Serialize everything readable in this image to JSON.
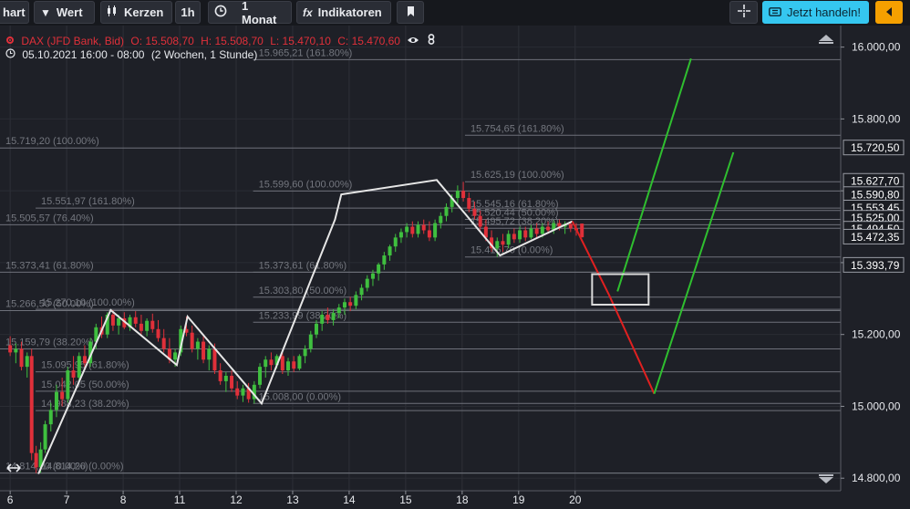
{
  "toolbar": {
    "chart_label": "hart",
    "value_label": "Wert",
    "candles_label": "Kerzen",
    "interval_label": "1h",
    "range_label": "1 Monat",
    "indicators_label": "Indikatoren",
    "trade_label": "Jetzt handeln!",
    "icons": [
      "dropdown-caret-icon",
      "candles-icon",
      "clock-icon",
      "fx-icon",
      "bookmark-icon",
      "crosshair-icon",
      "ticket-icon",
      "caret-left-icon"
    ]
  },
  "instrument": {
    "name": "DAX (JFD Bank, Bid)",
    "open": "O: 15.508,70",
    "high": "H: 15.508,70",
    "low": "L: 15.470,10",
    "close": "C: 15.470,60",
    "period": "05.10.2021 16:00 - 08:00",
    "span": "(2 Wochen, 1 Stunde)"
  },
  "colors": {
    "background": "#1e2027",
    "toolbar": "#16181d",
    "bullish": "#3fbf3f",
    "bearish": "#e0303a",
    "accent_blue": "#35c7f0",
    "accent_orange": "#f5a000",
    "projection_green": "#2fbf2f",
    "projection_red": "#e02020"
  },
  "chart_data": {
    "type": "candlestick",
    "title": "",
    "x_ticks": [
      {
        "label": "6",
        "x": 0
      },
      {
        "label": "7",
        "x": 1
      },
      {
        "label": "8",
        "x": 2
      },
      {
        "label": "11",
        "x": 3
      },
      {
        "label": "12",
        "x": 4
      },
      {
        "label": "13",
        "x": 5
      },
      {
        "label": "14",
        "x": 6
      },
      {
        "label": "15",
        "x": 7
      },
      {
        "label": "18",
        "x": 8
      },
      {
        "label": "19",
        "x": 9
      },
      {
        "label": "20",
        "x": 10
      }
    ],
    "y_ticks": [
      {
        "label": "16.000,00",
        "value": 16000
      },
      {
        "label": "15.800,00",
        "value": 15800
      },
      {
        "label": "15.600,00",
        "value": 15600
      },
      {
        "label": "15.400,00",
        "value": 15400
      },
      {
        "label": "15.200,00",
        "value": 15200
      },
      {
        "label": "15.000,00",
        "value": 15000
      },
      {
        "label": "14.800,00",
        "value": 14800
      }
    ],
    "ylim": [
      14765,
      16060
    ],
    "xlim": [
      -0.18,
      14.7
    ],
    "price_tags": [
      {
        "label": "15.720,50",
        "value": 15720.5
      },
      {
        "label": "15.627,70",
        "value": 15627.7
      },
      {
        "label": "15.590,80",
        "value": 15590.8
      },
      {
        "label": "15.553,45",
        "value": 15553.45
      },
      {
        "label": "15.525,00",
        "value": 15525
      },
      {
        "label": "15.494,50",
        "value": 15494.5
      },
      {
        "label": "15.472,35",
        "value": 15472.35
      },
      {
        "label": "15.393,79",
        "value": 15393.79
      }
    ],
    "fib_levels": [
      {
        "label": "15.965,21 (161.80%)",
        "value": 15965.21,
        "x0": 4.3,
        "x1": 14.7
      },
      {
        "label": "15.754,65 (161.80%)",
        "value": 15754.65,
        "x0": 8.05,
        "x1": 14.7
      },
      {
        "label": "15.719,20 (100.00%)",
        "value": 15719.2,
        "x0": -0.18,
        "x1": 14.7
      },
      {
        "label": "15.625,19 (100.00%)",
        "value": 15625.19,
        "x0": 8.05,
        "x1": 14.7
      },
      {
        "label": "15.599,60 (100.00%)",
        "value": 15599.6,
        "x0": 4.3,
        "x1": 14.7
      },
      {
        "label": "15.551,97 (161.80%)",
        "value": 15551.97,
        "x0": 0.45,
        "x1": 14.7
      },
      {
        "label": "15.545,16 (61.80%)",
        "value": 15545.16,
        "x0": 8.05,
        "x1": 14.7
      },
      {
        "label": "15.520,44 (50.00%)",
        "value": 15520.44,
        "x0": 8.05,
        "x1": 14.7
      },
      {
        "label": "15.505,57 (76.40%)",
        "value": 15505.57,
        "x0": -0.18,
        "x1": 14.7
      },
      {
        "label": "15.495,72 (38.20%)",
        "value": 15495.72,
        "x0": 8.05,
        "x1": 14.7
      },
      {
        "label": "15.415,70 (0.00%)",
        "value": 15415.7,
        "x0": 8.05,
        "x1": 14.7
      },
      {
        "label": "15.373,41 (61.80%)",
        "value": 15373.41,
        "x0": -0.18,
        "x1": 14.7
      },
      {
        "label": "15.373,61 (61.80%)",
        "value": 15373.61,
        "x0": 4.3,
        "x1": 14.7
      },
      {
        "label": "15.303,80 (50.00%)",
        "value": 15303.8,
        "x0": 4.3,
        "x1": 14.7
      },
      {
        "label": "15.270,10 (100.00%)",
        "value": 15270.1,
        "x0": 0.45,
        "x1": 14.7
      },
      {
        "label": "15.266,50 (50.00%)",
        "value": 15266.5,
        "x0": -0.18,
        "x1": 14.7
      },
      {
        "label": "15.233,99 (38.20%)",
        "value": 15233.99,
        "x0": 4.3,
        "x1": 14.7
      },
      {
        "label": "15.159,79 (38.20%)",
        "value": 15159.79,
        "x0": -0.18,
        "x1": 14.7
      },
      {
        "label": "15.095,95 (61.80%)",
        "value": 15095.95,
        "x0": 0.45,
        "x1": 14.7
      },
      {
        "label": "15.042,05 (50.00%)",
        "value": 15042.05,
        "x0": 0.45,
        "x1": 14.7
      },
      {
        "label": "15.008,00 (0.00%)",
        "value": 15008,
        "x0": 4.3,
        "x1": 14.7
      },
      {
        "label": "14.988,23 (38.20%)",
        "value": 14988.23,
        "x0": 0.45,
        "x1": 14.7
      },
      {
        "label": "14.814,20 (0.00%)",
        "value": 14814.2,
        "x0": -0.18,
        "x1": 14.7
      },
      {
        "label": "14.814,20 (0.00%)",
        "value": 14814.2,
        "x0": 0.45,
        "x1": 14.7
      }
    ],
    "wave_line": [
      [
        0.5,
        14812
      ],
      [
        1.78,
        15268
      ],
      [
        2.95,
        15115
      ],
      [
        3.14,
        15250
      ],
      [
        4.45,
        15008
      ],
      [
        5.75,
        15520
      ],
      [
        5.86,
        15590
      ],
      [
        7.55,
        15630
      ],
      [
        8.67,
        15420
      ],
      [
        9.95,
        15515
      ]
    ],
    "projection_red": [
      [
        9.95,
        15515
      ],
      [
        10.6,
        15310
      ],
      [
        11.4,
        15035
      ]
    ],
    "projection_green": [
      [
        10.75,
        15320
      ],
      [
        12.05,
        15968
      ]
    ],
    "projection_green_2": [
      [
        11.4,
        15035
      ],
      [
        12.8,
        15707
      ]
    ],
    "target_box": {
      "x0": 10.3,
      "x1": 11.3,
      "y0": 15283,
      "y1": 15368
    },
    "candles": [
      {
        "x": 0.0,
        "o": 15170,
        "h": 15195,
        "l": 15140,
        "c": 15150
      },
      {
        "x": 0.1,
        "o": 15150,
        "h": 15175,
        "l": 15120,
        "c": 15160
      },
      {
        "x": 0.2,
        "o": 15160,
        "h": 15180,
        "l": 15100,
        "c": 15110
      },
      {
        "x": 0.3,
        "o": 15110,
        "h": 15150,
        "l": 15080,
        "c": 15140
      },
      {
        "x": 0.38,
        "o": 15140,
        "h": 15160,
        "l": 14850,
        "c": 14870
      },
      {
        "x": 0.46,
        "o": 14870,
        "h": 14890,
        "l": 14814,
        "c": 14830
      },
      {
        "x": 0.54,
        "o": 14830,
        "h": 14900,
        "l": 14815,
        "c": 14880
      },
      {
        "x": 0.62,
        "o": 14880,
        "h": 14960,
        "l": 14870,
        "c": 14950
      },
      {
        "x": 0.72,
        "o": 14950,
        "h": 15010,
        "l": 14930,
        "c": 14990
      },
      {
        "x": 0.82,
        "o": 14990,
        "h": 15060,
        "l": 14970,
        "c": 15040
      },
      {
        "x": 0.92,
        "o": 15040,
        "h": 15080,
        "l": 15000,
        "c": 15020
      },
      {
        "x": 1.02,
        "o": 15020,
        "h": 15110,
        "l": 15010,
        "c": 15100
      },
      {
        "x": 1.12,
        "o": 15100,
        "h": 15140,
        "l": 15060,
        "c": 15080
      },
      {
        "x": 1.22,
        "o": 15080,
        "h": 15150,
        "l": 15070,
        "c": 15140
      },
      {
        "x": 1.32,
        "o": 15140,
        "h": 15170,
        "l": 15100,
        "c": 15120
      },
      {
        "x": 1.42,
        "o": 15120,
        "h": 15190,
        "l": 15110,
        "c": 15180
      },
      {
        "x": 1.52,
        "o": 15180,
        "h": 15230,
        "l": 15160,
        "c": 15220
      },
      {
        "x": 1.62,
        "o": 15220,
        "h": 15250,
        "l": 15190,
        "c": 15200
      },
      {
        "x": 1.72,
        "o": 15200,
        "h": 15262,
        "l": 15190,
        "c": 15255
      },
      {
        "x": 1.82,
        "o": 15255,
        "h": 15268,
        "l": 15210,
        "c": 15225
      },
      {
        "x": 1.92,
        "o": 15225,
        "h": 15255,
        "l": 15200,
        "c": 15245
      },
      {
        "x": 2.02,
        "o": 15245,
        "h": 15262,
        "l": 15215,
        "c": 15220
      },
      {
        "x": 2.12,
        "o": 15220,
        "h": 15255,
        "l": 15210,
        "c": 15248
      },
      {
        "x": 2.22,
        "o": 15248,
        "h": 15265,
        "l": 15220,
        "c": 15230
      },
      {
        "x": 2.32,
        "o": 15230,
        "h": 15255,
        "l": 15200,
        "c": 15210
      },
      {
        "x": 2.42,
        "o": 15210,
        "h": 15245,
        "l": 15195,
        "c": 15238
      },
      {
        "x": 2.52,
        "o": 15238,
        "h": 15258,
        "l": 15205,
        "c": 15215
      },
      {
        "x": 2.62,
        "o": 15215,
        "h": 15240,
        "l": 15180,
        "c": 15190
      },
      {
        "x": 2.72,
        "o": 15190,
        "h": 15215,
        "l": 15150,
        "c": 15160
      },
      {
        "x": 2.82,
        "o": 15160,
        "h": 15190,
        "l": 15120,
        "c": 15130
      },
      {
        "x": 2.92,
        "o": 15130,
        "h": 15160,
        "l": 15110,
        "c": 15150
      },
      {
        "x": 3.02,
        "o": 15150,
        "h": 15225,
        "l": 15140,
        "c": 15215
      },
      {
        "x": 3.12,
        "o": 15215,
        "h": 15250,
        "l": 15195,
        "c": 15205
      },
      {
        "x": 3.22,
        "o": 15205,
        "h": 15225,
        "l": 15150,
        "c": 15160
      },
      {
        "x": 3.32,
        "o": 15160,
        "h": 15190,
        "l": 15130,
        "c": 15180
      },
      {
        "x": 3.42,
        "o": 15180,
        "h": 15195,
        "l": 15120,
        "c": 15130
      },
      {
        "x": 3.52,
        "o": 15130,
        "h": 15170,
        "l": 15100,
        "c": 15160
      },
      {
        "x": 3.62,
        "o": 15160,
        "h": 15175,
        "l": 15090,
        "c": 15100
      },
      {
        "x": 3.72,
        "o": 15100,
        "h": 15120,
        "l": 15060,
        "c": 15070
      },
      {
        "x": 3.82,
        "o": 15070,
        "h": 15095,
        "l": 15040,
        "c": 15085
      },
      {
        "x": 3.92,
        "o": 15085,
        "h": 15100,
        "l": 15040,
        "c": 15050
      },
      {
        "x": 4.02,
        "o": 15050,
        "h": 15070,
        "l": 15020,
        "c": 15030
      },
      {
        "x": 4.12,
        "o": 15030,
        "h": 15060,
        "l": 15012,
        "c": 15050
      },
      {
        "x": 4.22,
        "o": 15050,
        "h": 15065,
        "l": 15010,
        "c": 15020
      },
      {
        "x": 4.32,
        "o": 15020,
        "h": 15070,
        "l": 15008,
        "c": 15060
      },
      {
        "x": 4.42,
        "o": 15060,
        "h": 15120,
        "l": 15050,
        "c": 15110
      },
      {
        "x": 4.52,
        "o": 15110,
        "h": 15140,
        "l": 15080,
        "c": 15130
      },
      {
        "x": 4.62,
        "o": 15130,
        "h": 15150,
        "l": 15100,
        "c": 15115
      },
      {
        "x": 4.72,
        "o": 15115,
        "h": 15145,
        "l": 15105,
        "c": 15140
      },
      {
        "x": 4.82,
        "o": 15140,
        "h": 15150,
        "l": 15090,
        "c": 15100
      },
      {
        "x": 4.92,
        "o": 15100,
        "h": 15135,
        "l": 15085,
        "c": 15125
      },
      {
        "x": 5.02,
        "o": 15125,
        "h": 15140,
        "l": 15095,
        "c": 15105
      },
      {
        "x": 5.12,
        "o": 15105,
        "h": 15145,
        "l": 15100,
        "c": 15140
      },
      {
        "x": 5.22,
        "o": 15140,
        "h": 15170,
        "l": 15120,
        "c": 15160
      },
      {
        "x": 5.32,
        "o": 15160,
        "h": 15210,
        "l": 15150,
        "c": 15200
      },
      {
        "x": 5.42,
        "o": 15200,
        "h": 15240,
        "l": 15190,
        "c": 15230
      },
      {
        "x": 5.52,
        "o": 15230,
        "h": 15265,
        "l": 15210,
        "c": 15255
      },
      {
        "x": 5.62,
        "o": 15255,
        "h": 15275,
        "l": 15230,
        "c": 15240
      },
      {
        "x": 5.72,
        "o": 15240,
        "h": 15270,
        "l": 15225,
        "c": 15260
      },
      {
        "x": 5.82,
        "o": 15260,
        "h": 15285,
        "l": 15245,
        "c": 15275
      },
      {
        "x": 5.92,
        "o": 15275,
        "h": 15300,
        "l": 15255,
        "c": 15290
      },
      {
        "x": 6.02,
        "o": 15290,
        "h": 15305,
        "l": 15265,
        "c": 15280
      },
      {
        "x": 6.12,
        "o": 15280,
        "h": 15320,
        "l": 15270,
        "c": 15310
      },
      {
        "x": 6.22,
        "o": 15310,
        "h": 15340,
        "l": 15295,
        "c": 15330
      },
      {
        "x": 6.32,
        "o": 15330,
        "h": 15365,
        "l": 15320,
        "c": 15355
      },
      {
        "x": 6.42,
        "o": 15355,
        "h": 15380,
        "l": 15335,
        "c": 15370
      },
      {
        "x": 6.52,
        "o": 15370,
        "h": 15400,
        "l": 15350,
        "c": 15395
      },
      {
        "x": 6.62,
        "o": 15395,
        "h": 15430,
        "l": 15380,
        "c": 15420
      },
      {
        "x": 6.72,
        "o": 15420,
        "h": 15450,
        "l": 15405,
        "c": 15445
      },
      {
        "x": 6.82,
        "o": 15445,
        "h": 15480,
        "l": 15430,
        "c": 15470
      },
      {
        "x": 6.92,
        "o": 15470,
        "h": 15495,
        "l": 15455,
        "c": 15485
      },
      {
        "x": 7.02,
        "o": 15485,
        "h": 15510,
        "l": 15470,
        "c": 15500
      },
      {
        "x": 7.12,
        "o": 15500,
        "h": 15515,
        "l": 15470,
        "c": 15480
      },
      {
        "x": 7.22,
        "o": 15480,
        "h": 15515,
        "l": 15470,
        "c": 15505
      },
      {
        "x": 7.32,
        "o": 15505,
        "h": 15520,
        "l": 15480,
        "c": 15490
      },
      {
        "x": 7.42,
        "o": 15490,
        "h": 15515,
        "l": 15460,
        "c": 15470
      },
      {
        "x": 7.52,
        "o": 15470,
        "h": 15520,
        "l": 15460,
        "c": 15510
      },
      {
        "x": 7.62,
        "o": 15510,
        "h": 15540,
        "l": 15495,
        "c": 15530
      },
      {
        "x": 7.72,
        "o": 15530,
        "h": 15565,
        "l": 15515,
        "c": 15555
      },
      {
        "x": 7.82,
        "o": 15555,
        "h": 15590,
        "l": 15540,
        "c": 15580
      },
      {
        "x": 7.92,
        "o": 15580,
        "h": 15615,
        "l": 15565,
        "c": 15600
      },
      {
        "x": 8.02,
        "o": 15600,
        "h": 15625,
        "l": 15570,
        "c": 15580
      },
      {
        "x": 8.12,
        "o": 15580,
        "h": 15595,
        "l": 15540,
        "c": 15550
      },
      {
        "x": 8.22,
        "o": 15550,
        "h": 15570,
        "l": 15520,
        "c": 15530
      },
      {
        "x": 8.32,
        "o": 15530,
        "h": 15545,
        "l": 15490,
        "c": 15500
      },
      {
        "x": 8.42,
        "o": 15500,
        "h": 15520,
        "l": 15460,
        "c": 15470
      },
      {
        "x": 8.52,
        "o": 15470,
        "h": 15490,
        "l": 15430,
        "c": 15440
      },
      {
        "x": 8.62,
        "o": 15440,
        "h": 15470,
        "l": 15416,
        "c": 15460
      },
      {
        "x": 8.72,
        "o": 15460,
        "h": 15480,
        "l": 15430,
        "c": 15450
      },
      {
        "x": 8.82,
        "o": 15450,
        "h": 15490,
        "l": 15440,
        "c": 15480
      },
      {
        "x": 8.92,
        "o": 15480,
        "h": 15495,
        "l": 15455,
        "c": 15465
      },
      {
        "x": 9.02,
        "o": 15465,
        "h": 15500,
        "l": 15455,
        "c": 15490
      },
      {
        "x": 9.12,
        "o": 15490,
        "h": 15500,
        "l": 15460,
        "c": 15470
      },
      {
        "x": 9.22,
        "o": 15470,
        "h": 15505,
        "l": 15465,
        "c": 15495
      },
      {
        "x": 9.32,
        "o": 15495,
        "h": 15510,
        "l": 15470,
        "c": 15480
      },
      {
        "x": 9.42,
        "o": 15480,
        "h": 15510,
        "l": 15470,
        "c": 15500
      },
      {
        "x": 9.52,
        "o": 15500,
        "h": 15515,
        "l": 15480,
        "c": 15490
      },
      {
        "x": 9.62,
        "o": 15490,
        "h": 15518,
        "l": 15480,
        "c": 15510
      },
      {
        "x": 9.72,
        "o": 15510,
        "h": 15520,
        "l": 15490,
        "c": 15500
      },
      {
        "x": 9.82,
        "o": 15500,
        "h": 15515,
        "l": 15480,
        "c": 15508
      },
      {
        "x": 9.92,
        "o": 15508,
        "h": 15515,
        "l": 15485,
        "c": 15495
      },
      {
        "x": 10.02,
        "o": 15495,
        "h": 15510,
        "l": 15475,
        "c": 15490
      },
      {
        "x": 10.12,
        "o": 15508.7,
        "h": 15508.7,
        "l": 15470.1,
        "c": 15470.6
      }
    ]
  }
}
